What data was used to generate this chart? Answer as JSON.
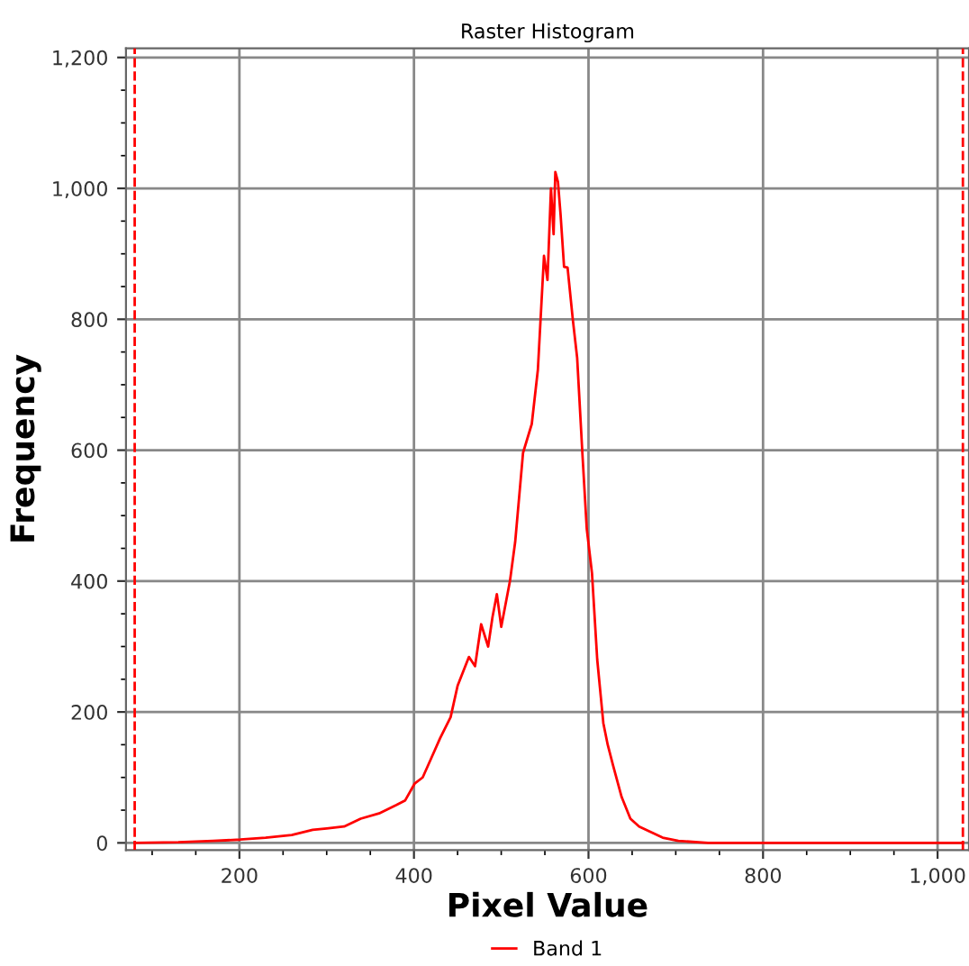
{
  "chart_data": {
    "type": "line",
    "title": "Raster Histogram",
    "xlabel": "Pixel Value",
    "ylabel": "Frequency",
    "xlim": [
      70,
      1036
    ],
    "ylim": [
      -11,
      1214
    ],
    "xticks": [
      200,
      400,
      600,
      800,
      {
        "value": 1000,
        "label": "1,000"
      }
    ],
    "yticks": [
      0,
      200,
      400,
      600,
      800,
      {
        "value": 1000,
        "label": "1,000"
      },
      {
        "value": 1200,
        "label": "1,200"
      }
    ],
    "grid": true,
    "legend": "bottom",
    "marker": "none",
    "line_style": "solid",
    "ref_lines": [
      {
        "axis": "x",
        "value": 80,
        "color": "#ff0000",
        "line_style": "dashed"
      },
      {
        "axis": "x",
        "value": 1029,
        "color": "#ff0000",
        "line_style": "dashed"
      }
    ],
    "series": [
      {
        "name": "Band 1",
        "color": "#ff0000",
        "x": [
          80,
          130,
          170,
          201,
          230,
          260,
          284,
          300,
          320,
          339,
          360,
          380,
          390,
          401,
          410,
          420,
          430,
          442,
          450,
          463,
          470,
          477,
          485,
          490,
          495,
          500,
          510,
          516,
          525,
          535,
          542,
          549,
          553,
          557,
          560,
          562,
          565,
          568,
          572,
          576,
          582,
          587,
          593,
          598,
          604,
          610,
          617,
          622,
          628,
          638,
          648,
          658,
          669,
          685,
          703,
          737,
          800,
          900,
          1000,
          1029
        ],
        "values": [
          0,
          1,
          3,
          5,
          8,
          12,
          20,
          22,
          25,
          37,
          45,
          58,
          65,
          91,
          100,
          130,
          160,
          192,
          240,
          284,
          270,
          334,
          300,
          345,
          380,
          330,
          400,
          460,
          596,
          640,
          723,
          897,
          860,
          1000,
          930,
          1025,
          1010,
          960,
          880,
          879,
          800,
          741,
          595,
          480,
          412,
          280,
          183,
          150,
          119,
          70,
          37,
          25,
          18,
          8,
          3,
          0,
          0,
          0,
          0,
          0
        ]
      }
    ]
  }
}
